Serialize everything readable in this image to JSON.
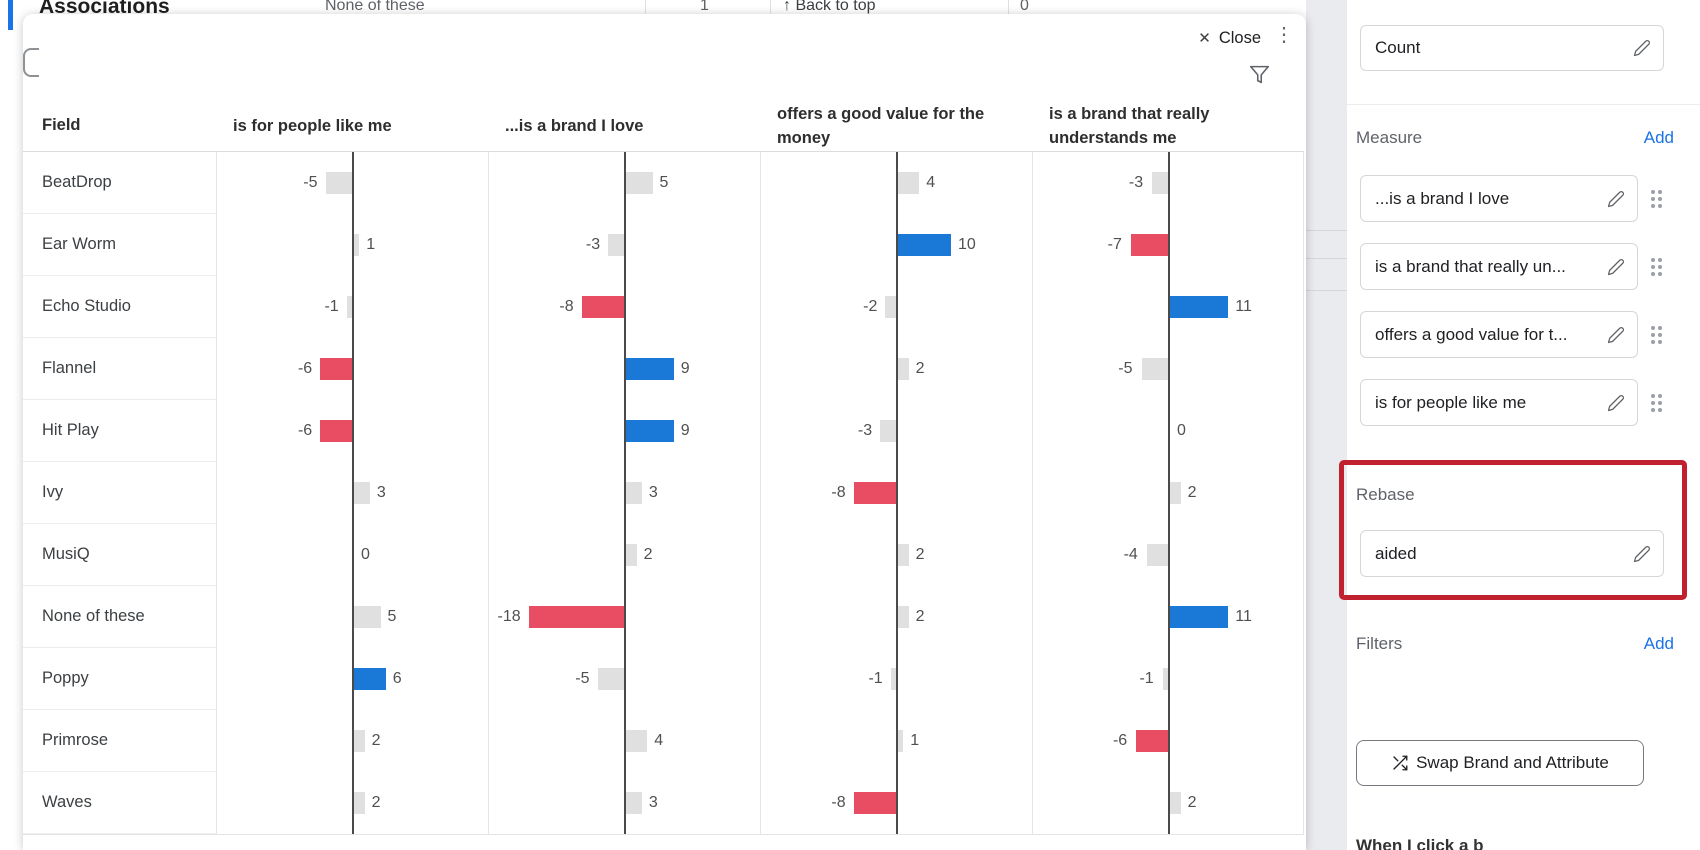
{
  "colors": {
    "accent_blue": "#1a73e8",
    "highlight_red": "#c1202f",
    "bar_positive": "#1a78d6",
    "bar_negative": "#e84d64",
    "bar_neutral": "#e0e0e0"
  },
  "background_page": {
    "heading": "Associations",
    "row_fragment": "None of these",
    "value_fragment_1": "1",
    "back_to_top": "Back to top",
    "value_fragment_2": "0"
  },
  "modal": {
    "close_label": "Close"
  },
  "chart_data": {
    "type": "bar",
    "orientation": "horizontal",
    "title": "",
    "field_header": "Field",
    "columns": [
      "is for people like me",
      "...is a brand I love",
      "offers a good value for the money",
      "is a brand that really understands me"
    ],
    "legend": {
      "pos": "significant positive (blue)",
      "neg": "significant negative (red)",
      "neu": "not significant (gray)"
    },
    "rows": [
      {
        "field": "BeatDrop",
        "values": [
          -5,
          5,
          4,
          -3
        ],
        "sig": [
          "neu",
          "neu",
          "neu",
          "neu"
        ]
      },
      {
        "field": "Ear Worm",
        "values": [
          1,
          -3,
          10,
          -7
        ],
        "sig": [
          "neu",
          "neu",
          "pos",
          "neg"
        ]
      },
      {
        "field": "Echo Studio",
        "values": [
          -1,
          -8,
          -2,
          11
        ],
        "sig": [
          "neu",
          "neg",
          "neu",
          "pos"
        ]
      },
      {
        "field": "Flannel",
        "values": [
          -6,
          9,
          2,
          -5
        ],
        "sig": [
          "neg",
          "pos",
          "neu",
          "neu"
        ]
      },
      {
        "field": "Hit Play",
        "values": [
          -6,
          9,
          -3,
          0
        ],
        "sig": [
          "neg",
          "pos",
          "neu",
          "zero"
        ]
      },
      {
        "field": "Ivy",
        "values": [
          3,
          3,
          -8,
          2
        ],
        "sig": [
          "neu",
          "neu",
          "neg",
          "neu"
        ]
      },
      {
        "field": "MusiQ",
        "values": [
          0,
          2,
          2,
          -4
        ],
        "sig": [
          "zero",
          "neu",
          "neu",
          "neu"
        ]
      },
      {
        "field": "None of these",
        "values": [
          5,
          -18,
          2,
          11
        ],
        "sig": [
          "neu",
          "neg",
          "neu",
          "pos"
        ]
      },
      {
        "field": "Poppy",
        "values": [
          6,
          -5,
          -1,
          -1
        ],
        "sig": [
          "pos",
          "neu",
          "neu",
          "neu"
        ]
      },
      {
        "field": "Primrose",
        "values": [
          2,
          4,
          1,
          -6
        ],
        "sig": [
          "neu",
          "neu",
          "neu",
          "neg"
        ]
      },
      {
        "field": "Waves",
        "values": [
          2,
          3,
          -8,
          2
        ],
        "sig": [
          "neu",
          "neu",
          "neg",
          "neu"
        ]
      }
    ]
  },
  "sidebar": {
    "count_field_value": "Count",
    "measure_label": "Measure",
    "measure_add_label": "Add",
    "measure_items": [
      "...is a brand I love",
      "is a brand that really un...",
      "offers a good value for t...",
      "is for people like me"
    ],
    "rebase_label": "Rebase",
    "rebase_field_value": "aided",
    "filters_label": "Filters",
    "filters_add_label": "Add",
    "swap_button_label": "Swap Brand and Attribute",
    "clipped_bottom_text": "When I click a b"
  }
}
